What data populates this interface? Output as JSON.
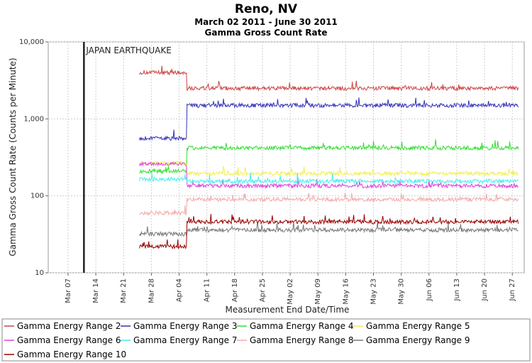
{
  "chart_data": {
    "type": "line",
    "title": "Reno, NV",
    "subtitle": "March 02 2011 - June 30 2011",
    "subtitle2": "Gamma Gross Count Rate",
    "xlabel": "Measurement End Date/Time",
    "ylabel": "Gamma Gross Count Rate (Counts per Minute)",
    "yscale": "log",
    "ylim": [
      10,
      10000
    ],
    "yticks": [
      10,
      100,
      1000,
      10000
    ],
    "ytick_labels": [
      "10",
      "100",
      "1,000",
      "10,000"
    ],
    "xlim": [
      "2011-03-02",
      "2011-06-30"
    ],
    "xticks": [
      "2011-03-07",
      "2011-03-14",
      "2011-03-21",
      "2011-03-28",
      "2011-04-04",
      "2011-04-11",
      "2011-04-18",
      "2011-04-25",
      "2011-05-02",
      "2011-05-09",
      "2011-05-16",
      "2011-05-23",
      "2011-05-30",
      "2011-06-06",
      "2011-06-13",
      "2011-06-20",
      "2011-06-27"
    ],
    "xtick_labels": [
      "Mar 07",
      "Mar 14",
      "Mar 21",
      "Mar 28",
      "Apr 04",
      "Apr 11",
      "Apr 18",
      "Apr 25",
      "May 02",
      "May 09",
      "May 16",
      "May 23",
      "May 30",
      "Jun 06",
      "Jun 13",
      "Jun 20",
      "Jun 27"
    ],
    "grid": true,
    "legend_position": "bottom",
    "annotations": [
      {
        "date": "2011-03-11",
        "label": "JAPAN EARTHQUAKE"
      }
    ],
    "series": [
      {
        "name": "Gamma Energy Range 2",
        "color": "#cc4444",
        "start": "2011-03-25",
        "jump_date": "2011-04-06",
        "before": 4000,
        "after": 2500
      },
      {
        "name": "Gamma Energy Range 3",
        "color": "#3333bb",
        "start": "2011-03-25",
        "jump_date": "2011-04-06",
        "before": 560,
        "after": 1500
      },
      {
        "name": "Gamma Energy Range 4",
        "color": "#33dd33",
        "start": "2011-03-25",
        "jump_date": "2011-04-06",
        "before": 210,
        "after": 420
      },
      {
        "name": "Gamma Energy Range 5",
        "color": "#f0f050",
        "start": "2011-03-25",
        "jump_date": "2011-04-06",
        "before": 265,
        "after": 195
      },
      {
        "name": "Gamma Energy Range 6",
        "color": "#dd44dd",
        "start": "2011-03-25",
        "jump_date": "2011-04-06",
        "before": 260,
        "after": 135
      },
      {
        "name": "Gamma Energy Range 7",
        "color": "#44eeee",
        "start": "2011-03-25",
        "jump_date": "2011-04-06",
        "before": 165,
        "after": 155
      },
      {
        "name": "Gamma Energy Range 8",
        "color": "#f4aaaa",
        "start": "2011-03-25",
        "jump_date": "2011-04-06",
        "before": 60,
        "after": 90
      },
      {
        "name": "Gamma Energy Range 9",
        "color": "#777777",
        "start": "2011-03-25",
        "jump_date": "2011-04-06",
        "before": 32,
        "after": 36
      },
      {
        "name": "Gamma Energy Range 10",
        "color": "#990000",
        "start": "2011-03-25",
        "jump_date": "2011-04-06",
        "before": 22,
        "after": 46
      }
    ]
  }
}
